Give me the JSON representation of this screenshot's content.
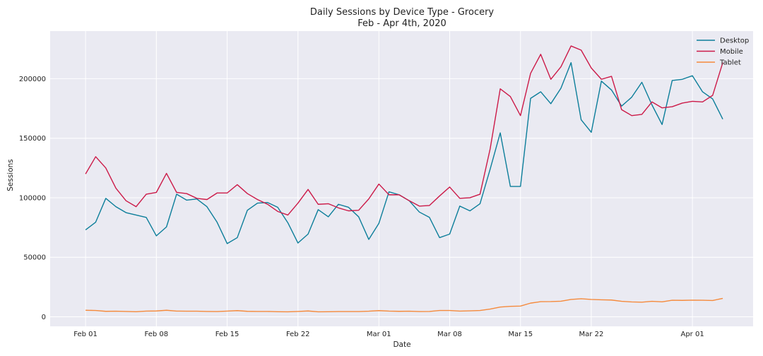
{
  "chart_data": {
    "type": "line",
    "title": "Daily Sessions by Device Type - Grocery",
    "subtitle": "Feb - Apr 4th, 2020",
    "xlabel": "Date",
    "ylabel": "Sessions",
    "x_start": "2020-02-01",
    "x_end": "2020-04-04",
    "ylim": [
      -8000,
      240000
    ],
    "grid": true,
    "legend_position": "top-right",
    "xticks": [
      {
        "date": "2020-02-01",
        "label": "Feb 01"
      },
      {
        "date": "2020-02-08",
        "label": "Feb 08"
      },
      {
        "date": "2020-02-15",
        "label": "Feb 15"
      },
      {
        "date": "2020-02-22",
        "label": "Feb 22"
      },
      {
        "date": "2020-03-01",
        "label": "Mar 01"
      },
      {
        "date": "2020-03-08",
        "label": "Mar 08"
      },
      {
        "date": "2020-03-15",
        "label": "Mar 15"
      },
      {
        "date": "2020-03-22",
        "label": "Mar 22"
      },
      {
        "date": "2020-04-01",
        "label": "Apr 01"
      }
    ],
    "yticks": [
      0,
      50000,
      100000,
      150000,
      200000
    ],
    "series": [
      {
        "name": "Desktop",
        "color": "#0c7e9a",
        "values": [
          73000,
          79500,
          99500,
          92500,
          87500,
          85500,
          83500,
          68000,
          75500,
          103000,
          98000,
          99000,
          92500,
          79500,
          61500,
          66500,
          89500,
          95500,
          96000,
          92000,
          79000,
          62000,
          69500,
          90000,
          84000,
          94500,
          92000,
          84000,
          65000,
          78500,
          105000,
          102500,
          97500,
          88000,
          83500,
          66500,
          69500,
          93000,
          89000,
          95000,
          124000,
          154500,
          109500,
          109500,
          183500,
          189000,
          179000,
          192000,
          213500,
          165500,
          155000,
          198000,
          190500,
          177000,
          184500,
          197000,
          178000,
          161500,
          198500,
          199500,
          202500,
          189000,
          183000,
          166000
        ]
      },
      {
        "name": "Mobile",
        "color": "#cc1a48",
        "values": [
          120000,
          134500,
          125000,
          108000,
          97500,
          92500,
          103000,
          104500,
          120500,
          104500,
          103500,
          99500,
          98500,
          104000,
          104000,
          111000,
          103500,
          98500,
          94500,
          88500,
          85500,
          95500,
          107000,
          94500,
          95000,
          91500,
          89000,
          89500,
          99000,
          111500,
          102500,
          102500,
          97500,
          93000,
          93500,
          101500,
          109000,
          99500,
          100000,
          103000,
          141000,
          191500,
          185000,
          169000,
          204500,
          220500,
          199500,
          210000,
          227500,
          224000,
          209000,
          199500,
          202000,
          174000,
          169000,
          170000,
          180500,
          175500,
          176500,
          179500,
          181000,
          180500,
          186000,
          213500
        ]
      },
      {
        "name": "Tablet",
        "color": "#f58a3c",
        "values": [
          5500,
          5300,
          4600,
          4700,
          4500,
          4300,
          4800,
          4900,
          5500,
          4800,
          4700,
          4700,
          4500,
          4400,
          4800,
          5200,
          4600,
          4500,
          4500,
          4300,
          4200,
          4500,
          4900,
          4200,
          4300,
          4400,
          4400,
          4400,
          4700,
          5200,
          4800,
          4600,
          4700,
          4400,
          4500,
          5300,
          5300,
          4800,
          5000,
          5300,
          6500,
          8200,
          8800,
          9000,
          11500,
          12700,
          12800,
          13100,
          14600,
          15200,
          14600,
          14300,
          14100,
          13000,
          12500,
          12300,
          13000,
          12600,
          13900,
          13800,
          14000,
          13900,
          13700,
          15500
        ]
      }
    ]
  }
}
